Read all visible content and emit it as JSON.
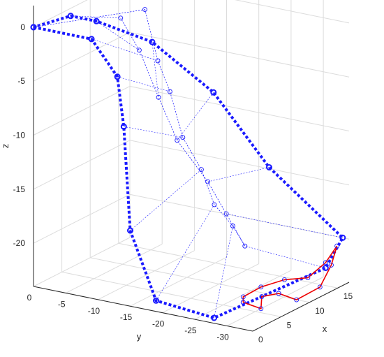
{
  "chart_data": {
    "type": "line",
    "subtype": "3d-line-scatter",
    "grid": true,
    "xlabel": "x",
    "ylabel": "y",
    "zlabel": "z",
    "xlim": [
      0,
      17
    ],
    "ylim": [
      0,
      -34
    ],
    "zlim": [
      -24,
      2
    ],
    "xticks": [
      "0",
      "5",
      "10",
      "15"
    ],
    "yticks": [
      "0",
      "-5",
      "-10",
      "-15",
      "-20",
      "-25",
      "-30"
    ],
    "zticks": [
      "0",
      "-5",
      "-10",
      "-15",
      "-20"
    ],
    "colors": {
      "hull": "#1a1aff",
      "trails": "#1a1aff",
      "ground_path": "#ee0000",
      "grid": "#dcdcdc",
      "axis": "#262626"
    },
    "series": [
      {
        "style": "thick dotted line with circle markers",
        "points": [
          [
            0,
            0,
            0
          ],
          [
            0,
            -9,
            0
          ],
          [
            0,
            -13,
            -3
          ],
          [
            0,
            -14,
            -7.5
          ],
          [
            0,
            -15,
            -17
          ],
          [
            0,
            -19,
            -23
          ],
          [
            0,
            -28,
            -23.5
          ],
          [
            14,
            -33,
            -22
          ],
          [
            17,
            -33,
            -20
          ],
          [
            12,
            -26,
            -13
          ],
          [
            9,
            -20,
            -6
          ],
          [
            5,
            -14,
            -1
          ],
          [
            2,
            -8,
            1
          ],
          [
            2,
            -4,
            1
          ],
          [
            0,
            0,
            0
          ]
        ]
      },
      {
        "style": "dotted lines with circle markers",
        "points": [
          [
            6,
            -12,
            1.5
          ],
          [
            6,
            -14,
            -3
          ],
          [
            7,
            -15,
            -6
          ],
          [
            7,
            -17,
            -10
          ],
          [
            8,
            -19,
            -13
          ],
          [
            8,
            -21,
            -16
          ],
          [
            9,
            -23,
            -18
          ],
          [
            10,
            -24,
            -20
          ],
          [
            9,
            -22,
            -17
          ],
          [
            8,
            -20,
            -14
          ],
          [
            6,
            -17,
            -10
          ],
          [
            5,
            -15,
            -6
          ],
          [
            5,
            -12,
            -2
          ],
          [
            4,
            -10,
            1
          ]
        ]
      },
      {
        "style": "solid line",
        "points": [
          [
            4,
            -29,
            -23
          ],
          [
            6,
            -30,
            -24
          ],
          [
            5,
            -31,
            -22.5
          ],
          [
            8,
            -31,
            -23
          ],
          [
            10,
            -32,
            -24
          ],
          [
            13,
            -33,
            -23.5
          ],
          [
            15,
            -33,
            -22
          ],
          [
            16,
            -33,
            -20.5
          ],
          [
            14,
            -33,
            -21.5
          ],
          [
            12,
            -32,
            -22.5
          ],
          [
            9,
            -31,
            -22
          ],
          [
            6,
            -30,
            -22
          ],
          [
            4,
            -29,
            -22.5
          ],
          [
            4,
            -29,
            -23
          ]
        ]
      }
    ]
  }
}
